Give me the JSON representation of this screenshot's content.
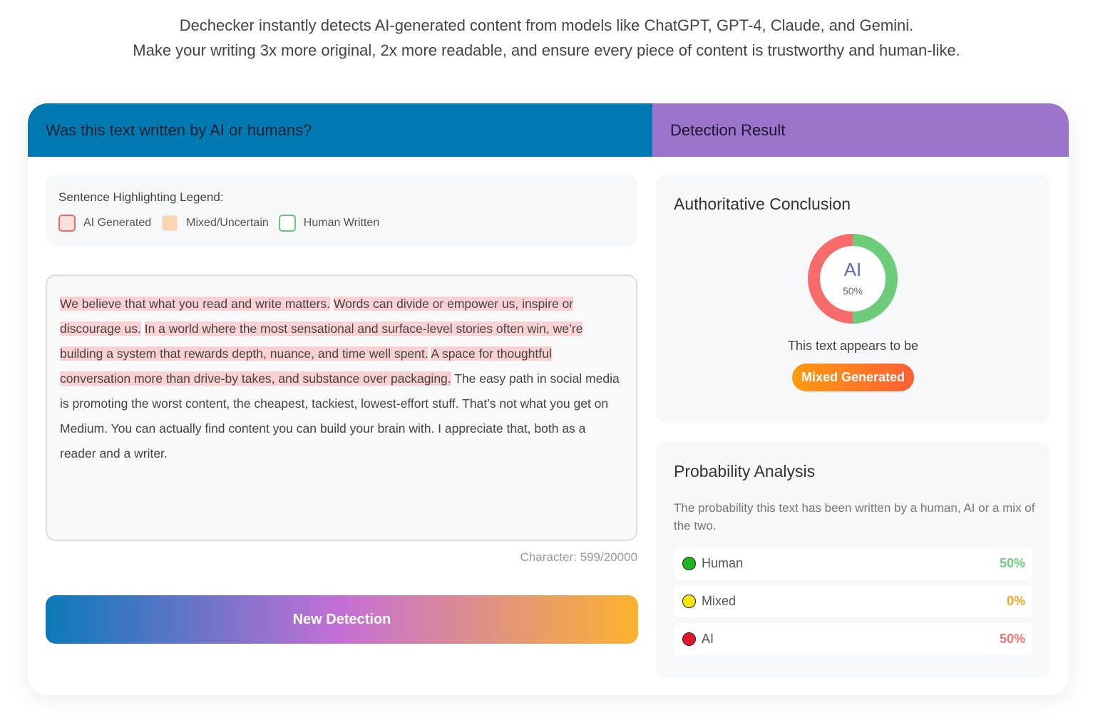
{
  "intro": {
    "line1": "Dechecker instantly detects AI-generated content from models like ChatGPT, GPT-4, Claude, and Gemini.",
    "line2": "Make your writing 3x more original, 2x more readable, and ensure every piece of content is trustworthy and human-like."
  },
  "left": {
    "header": "Was this text written by AI or humans?",
    "legend": {
      "title": "Sentence Highlighting Legend:",
      "items": [
        {
          "label": "AI Generated",
          "fill": "#fde0d8",
          "border": "#f06a6a"
        },
        {
          "label": "Mixed/Uncertain",
          "fill": "#fbd3b0",
          "border": "#eee"
        },
        {
          "label": "Human Written",
          "fill": "#ffffff",
          "border": "#6cc47a"
        }
      ]
    },
    "segments": [
      {
        "text": "We believe that what you read and write matters.",
        "type": "ai"
      },
      {
        "text": "Words can divide or empower us, inspire or discourage us.",
        "type": "ai"
      },
      {
        "text": "In a world where the most sensational and surface-level stories often win, we’re building a system that rewards depth, nuance, and time well spent.",
        "type": "ai"
      },
      {
        "text": "A space for thoughtful conversation more than drive-by takes, and substance over packaging.",
        "type": "ai"
      },
      {
        "text": "The easy path in social media is promoting the worst content, the cheapest, tackiest, lowest-effort stuff. That’s not what you get on Medium. You can actually find content you can build your brain with. I appreciate that, both as a reader and a writer.",
        "type": "plain"
      }
    ],
    "character_count": "Character: 599/20000",
    "new_detection": "New Detection"
  },
  "right": {
    "header": "Detection Result",
    "conclusion": {
      "title": "Authoritative Conclusion",
      "donut_label": "AI",
      "donut_percent": "50%",
      "ai_fraction": 0.5,
      "human_fraction": 0.5,
      "appears": "This text appears to be",
      "verdict": "Mixed Generated"
    },
    "probability": {
      "title": "Probability Analysis",
      "description": "The probability this text has been written by a human, AI or a mix of the two.",
      "rows": [
        {
          "label": "Human",
          "value": "50%",
          "dot": "#1fb51f",
          "color": "#6ccc7a"
        },
        {
          "label": "Mixed",
          "value": "0%",
          "dot": "#f5e60a",
          "color": "#f9a52a"
        },
        {
          "label": "AI",
          "value": "50%",
          "dot": "#e0182a",
          "color": "#f27474"
        }
      ]
    }
  }
}
